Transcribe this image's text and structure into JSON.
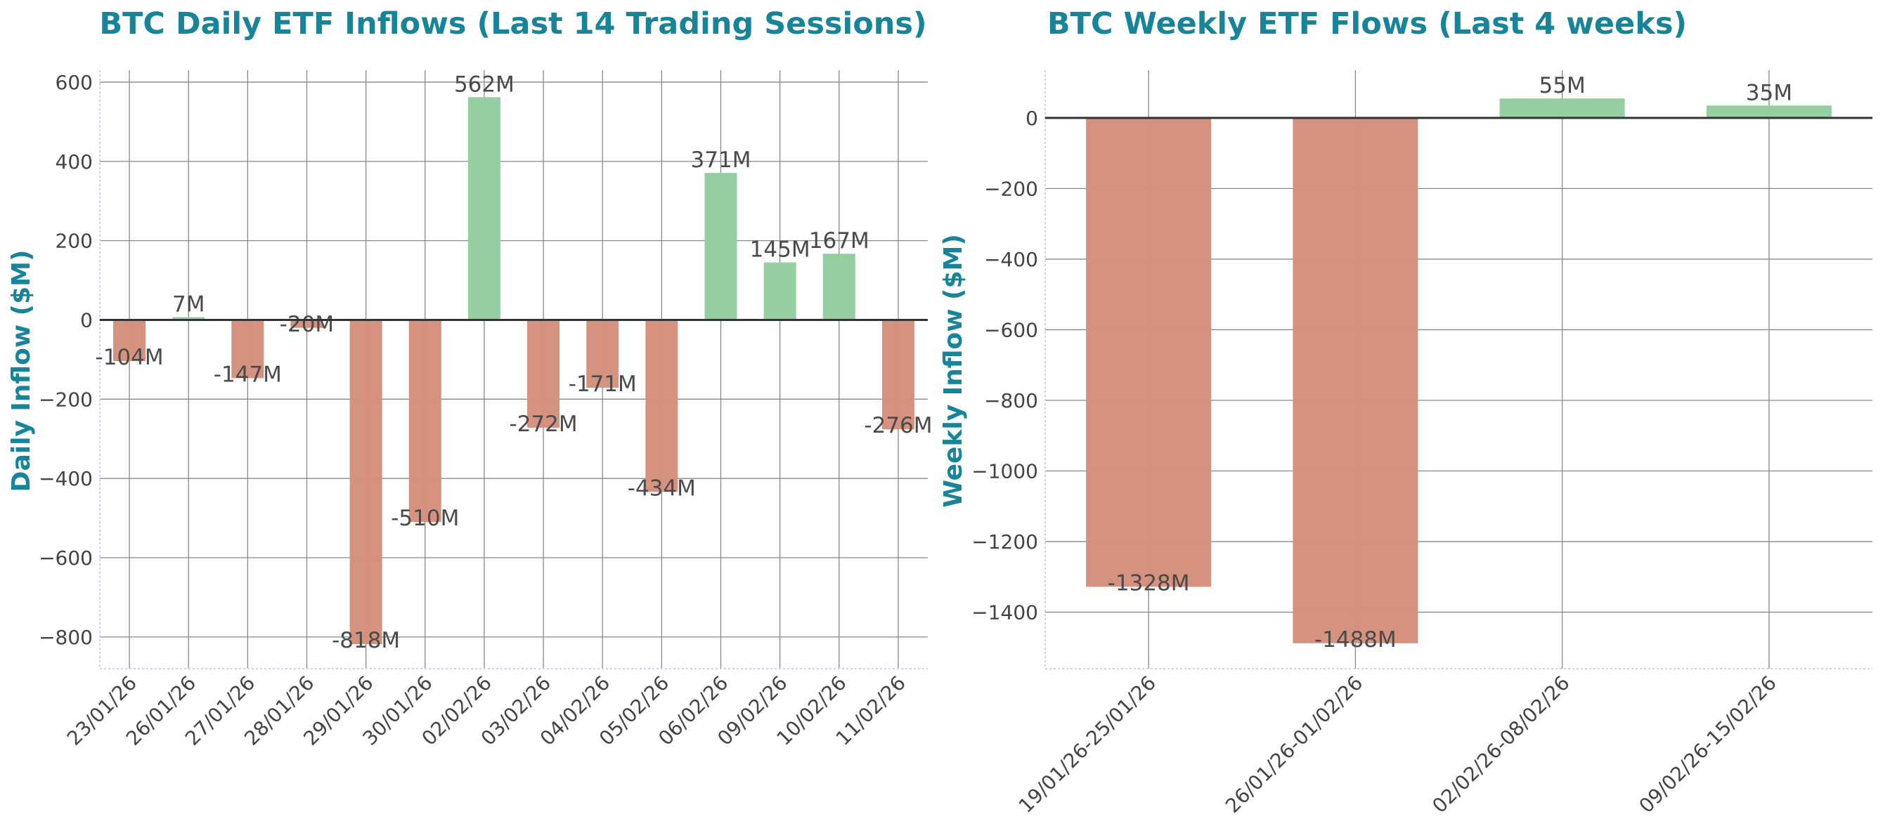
{
  "colors": {
    "positive": "#93cd9f",
    "negative": "#d4907b",
    "title": "#17849a"
  },
  "chart_data": [
    {
      "type": "bar",
      "title": "BTC Daily ETF Inflows (Last 14 Trading Sessions)",
      "xlabel": "",
      "ylabel": "Daily Inflow ($M)",
      "categories": [
        "23/01/26",
        "26/01/26",
        "27/01/26",
        "28/01/26",
        "29/01/26",
        "30/01/26",
        "02/02/26",
        "03/02/26",
        "04/02/26",
        "05/02/26",
        "06/02/26",
        "09/02/26",
        "10/02/26",
        "11/02/26"
      ],
      "values": [
        -104,
        7,
        -147,
        -20,
        -818,
        -510,
        562,
        -272,
        -171,
        -434,
        371,
        145,
        167,
        -276
      ],
      "data_labels": [
        "-104M",
        "7M",
        "-147M",
        "-20M",
        "-818M",
        "-510M",
        "562M",
        "-272M",
        "-171M",
        "-434M",
        "371M",
        "145M",
        "167M",
        "-276M"
      ],
      "yticks": [
        600,
        400,
        200,
        0,
        -200,
        -400,
        -600,
        -800
      ],
      "ytick_labels": [
        "600",
        "400",
        "200",
        "0",
        "−200",
        "−400",
        "−600",
        "−800"
      ],
      "ylim": [
        -880,
        630
      ],
      "grid": true
    },
    {
      "type": "bar",
      "title": "BTC Weekly ETF Flows (Last 4 weeks)",
      "xlabel": "",
      "ylabel": "Weekly Inflow ($M)",
      "categories": [
        "19/01/26-25/01/26",
        "26/01/26-01/02/26",
        "02/02/26-08/02/26",
        "09/02/26-15/02/26"
      ],
      "values": [
        -1328,
        -1488,
        55,
        35
      ],
      "data_labels": [
        "-1328M",
        "-1488M",
        "55M",
        "35M"
      ],
      "yticks": [
        0,
        -200,
        -400,
        -600,
        -800,
        -1000,
        -1200,
        -1400
      ],
      "ytick_labels": [
        "0",
        "−200",
        "−400",
        "−600",
        "−800",
        "−1000",
        "−1200",
        "−1400"
      ],
      "ylim": [
        -1560,
        135
      ],
      "grid": true
    }
  ]
}
